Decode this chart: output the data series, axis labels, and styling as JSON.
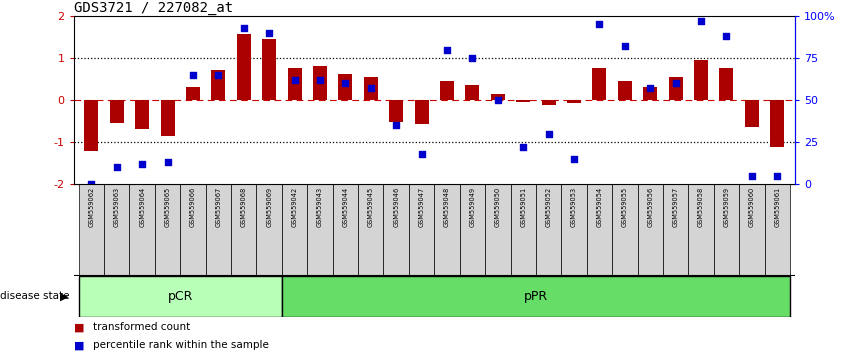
{
  "title": "GDS3721 / 227082_at",
  "samples": [
    "GSM559062",
    "GSM559063",
    "GSM559064",
    "GSM559065",
    "GSM559066",
    "GSM559067",
    "GSM559068",
    "GSM559069",
    "GSM559042",
    "GSM559043",
    "GSM559044",
    "GSM559045",
    "GSM559046",
    "GSM559047",
    "GSM559048",
    "GSM559049",
    "GSM559050",
    "GSM559051",
    "GSM559052",
    "GSM559053",
    "GSM559054",
    "GSM559055",
    "GSM559056",
    "GSM559057",
    "GSM559058",
    "GSM559059",
    "GSM559060",
    "GSM559061"
  ],
  "bar_values": [
    -1.22,
    -0.55,
    -0.68,
    -0.85,
    0.32,
    0.72,
    1.58,
    1.45,
    0.75,
    0.82,
    0.62,
    0.55,
    -0.52,
    -0.56,
    0.45,
    0.35,
    0.15,
    -0.04,
    -0.12,
    -0.08,
    0.76,
    0.45,
    0.32,
    0.55,
    0.95,
    0.75,
    -0.65,
    -1.12
  ],
  "percentile_values": [
    0,
    10,
    12,
    13,
    65,
    65,
    93,
    90,
    62,
    62,
    60,
    57,
    35,
    18,
    80,
    75,
    50,
    22,
    30,
    15,
    95,
    82,
    57,
    60,
    97,
    88,
    5,
    5
  ],
  "group1_label": "pCR",
  "group1_count": 8,
  "group2_label": "pPR",
  "group2_count": 20,
  "bar_color": "#aa0000",
  "dot_color": "#0000cc",
  "ylim": [
    -2.0,
    2.0
  ],
  "group1_color": "#b8ffb8",
  "group2_color": "#66dd66",
  "legend_bar_label": "transformed count",
  "legend_dot_label": "percentile rank within the sample",
  "left_yticks": [
    -2,
    -1,
    0,
    1,
    2
  ],
  "right_tick_pcts": [
    0,
    25,
    50,
    75,
    100
  ],
  "right_tick_labels": [
    "0",
    "25",
    "50",
    "75",
    "100%"
  ],
  "disease_state_label": "disease state"
}
